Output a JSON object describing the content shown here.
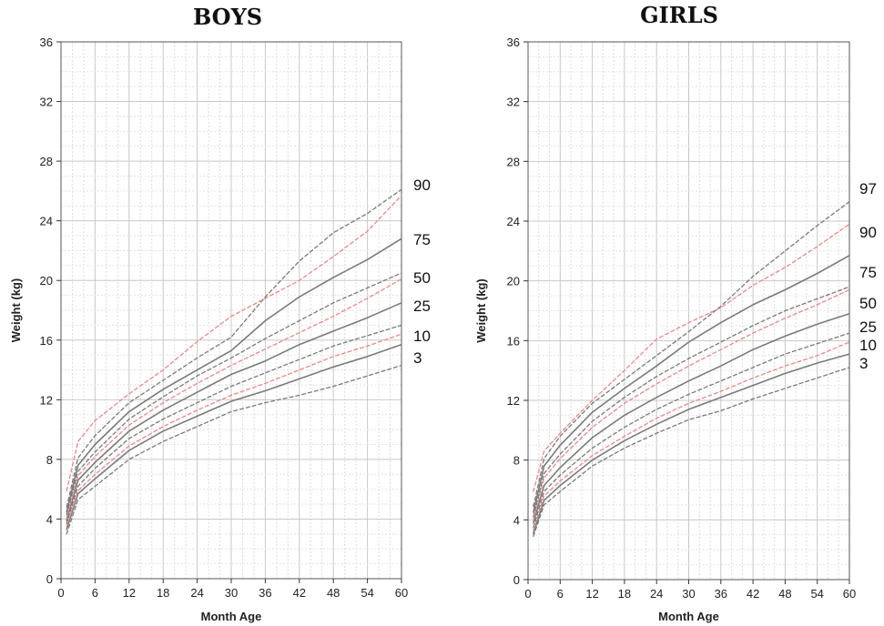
{
  "chart_data": [
    {
      "type": "line",
      "title": "BOYS",
      "xlabel": "Month Age",
      "ylabel": "Weight (kg)",
      "xlim": [
        0,
        60
      ],
      "ylim": [
        0,
        36
      ],
      "x_ticks": [
        "0",
        "6",
        "12",
        "18",
        "24",
        "30",
        "36",
        "42",
        "48",
        "54",
        "60"
      ],
      "y_ticks": [
        "0",
        "4",
        "8",
        "12",
        "16",
        "20",
        "24",
        "28",
        "32",
        "36"
      ],
      "grid": true,
      "x": [
        1,
        3,
        6,
        12,
        18,
        24,
        30,
        36,
        42,
        48,
        54,
        60
      ],
      "series": [
        {
          "name": "3",
          "color": "#7a7a7a",
          "dash": true,
          "values": [
            3.0,
            5.3,
            6.2,
            8.0,
            9.2,
            10.2,
            11.2,
            11.8,
            12.3,
            12.9,
            13.6,
            14.3
          ]
        },
        {
          "name": "10",
          "color": "#7a7a7a",
          "dash": false,
          "values": [
            3.3,
            5.7,
            6.7,
            8.6,
            9.9,
            10.9,
            11.9,
            12.6,
            13.4,
            14.2,
            14.9,
            15.7
          ]
        },
        {
          "name": "",
          "color": "#e88a8a",
          "dash": true,
          "values": [
            3.5,
            5.9,
            7.0,
            8.9,
            10.2,
            11.3,
            12.3,
            13.1,
            14.0,
            14.9,
            15.6,
            16.4
          ]
        },
        {
          "name": "",
          "color": "#7a7a7a",
          "dash": true,
          "values": [
            3.7,
            6.2,
            7.4,
            9.4,
            10.7,
            11.8,
            12.9,
            13.8,
            14.7,
            15.6,
            16.3,
            17.0
          ]
        },
        {
          "name": "25",
          "color": "#7a7a7a",
          "dash": false,
          "values": [
            3.9,
            6.6,
            7.8,
            9.9,
            11.3,
            12.5,
            13.7,
            14.6,
            15.7,
            16.6,
            17.5,
            18.5
          ]
        },
        {
          "name": "",
          "color": "#e88a8a",
          "dash": true,
          "values": [
            4.1,
            6.9,
            8.2,
            10.3,
            11.8,
            13.1,
            14.3,
            15.4,
            16.5,
            17.6,
            18.8,
            20.1
          ]
        },
        {
          "name": "50",
          "color": "#7a7a7a",
          "dash": true,
          "values": [
            4.3,
            7.2,
            8.5,
            10.7,
            12.2,
            13.6,
            14.8,
            16.1,
            17.3,
            18.5,
            19.5,
            20.5
          ]
        },
        {
          "name": "75",
          "color": "#7a7a7a",
          "dash": false,
          "values": [
            4.5,
            7.6,
            9.0,
            11.2,
            12.7,
            14.0,
            15.3,
            17.3,
            18.9,
            20.2,
            21.4,
            22.8
          ]
        },
        {
          "name": "",
          "color": "#7a7a7a",
          "dash": true,
          "values": [
            4.8,
            8.1,
            9.6,
            11.8,
            13.3,
            14.8,
            16.2,
            18.9,
            21.3,
            23.2,
            24.5,
            26.1
          ]
        },
        {
          "name": "90",
          "color": "#e88a8a",
          "dash": true,
          "values": [
            5.9,
            9.2,
            10.6,
            12.4,
            14.0,
            15.9,
            17.6,
            18.8,
            20.0,
            21.6,
            23.3,
            25.7
          ]
        }
      ]
    },
    {
      "type": "line",
      "title": "GIRLS",
      "xlabel": "Month Age",
      "ylabel": "Weight (kg)",
      "xlim": [
        0,
        60
      ],
      "ylim": [
        0,
        36
      ],
      "x_ticks": [
        "0",
        "6",
        "12",
        "18",
        "24",
        "30",
        "36",
        "42",
        "48",
        "54",
        "60"
      ],
      "y_ticks": [
        "0",
        "4",
        "8",
        "12",
        "16",
        "20",
        "24",
        "28",
        "32",
        "36"
      ],
      "grid": true,
      "x": [
        1,
        3,
        6,
        12,
        18,
        24,
        30,
        36,
        42,
        48,
        54,
        60
      ],
      "series": [
        {
          "name": "3",
          "color": "#7a7a7a",
          "dash": true,
          "values": [
            2.9,
            5.0,
            5.9,
            7.6,
            8.8,
            9.8,
            10.7,
            11.3,
            12.1,
            12.8,
            13.5,
            14.2
          ]
        },
        {
          "name": "10",
          "color": "#7a7a7a",
          "dash": false,
          "values": [
            3.1,
            5.3,
            6.3,
            8.0,
            9.3,
            10.4,
            11.4,
            12.2,
            13.0,
            13.8,
            14.5,
            15.1
          ]
        },
        {
          "name": "",
          "color": "#e88a8a",
          "dash": true,
          "values": [
            3.3,
            5.6,
            6.6,
            8.3,
            9.6,
            10.8,
            11.8,
            12.6,
            13.5,
            14.3,
            15.0,
            15.9
          ]
        },
        {
          "name": "25",
          "color": "#7a7a7a",
          "dash": true,
          "values": [
            3.5,
            5.9,
            7.0,
            8.8,
            10.2,
            11.4,
            12.4,
            13.3,
            14.2,
            15.1,
            15.8,
            16.5
          ]
        },
        {
          "name": "",
          "color": "#7a7a7a",
          "dash": false,
          "values": [
            3.8,
            6.3,
            7.5,
            9.5,
            11.0,
            12.2,
            13.3,
            14.3,
            15.4,
            16.3,
            17.1,
            17.8
          ]
        },
        {
          "name": "50",
          "color": "#e88a8a",
          "dash": true,
          "values": [
            4.0,
            6.8,
            8.1,
            10.2,
            11.8,
            13.1,
            14.3,
            15.4,
            16.5,
            17.5,
            18.4,
            19.4
          ]
        },
        {
          "name": "",
          "color": "#7a7a7a",
          "dash": true,
          "values": [
            4.2,
            7.1,
            8.4,
            10.6,
            12.2,
            13.6,
            14.8,
            15.9,
            17.0,
            18.0,
            18.8,
            19.6
          ]
        },
        {
          "name": "75",
          "color": "#7a7a7a",
          "dash": false,
          "values": [
            4.5,
            7.6,
            9.0,
            11.2,
            12.8,
            14.3,
            15.9,
            17.2,
            18.4,
            19.4,
            20.5,
            21.7
          ]
        },
        {
          "name": "90",
          "color": "#e88a8a",
          "dash": true,
          "values": [
            5.9,
            8.6,
            9.8,
            12.0,
            14.0,
            16.1,
            17.2,
            18.2,
            19.7,
            20.9,
            22.3,
            23.8
          ]
        },
        {
          "name": "97",
          "color": "#7a7a7a",
          "dash": true,
          "values": [
            4.9,
            8.1,
            9.6,
            11.8,
            13.4,
            15.0,
            16.6,
            18.3,
            20.3,
            22.0,
            23.7,
            25.3
          ]
        }
      ]
    }
  ]
}
